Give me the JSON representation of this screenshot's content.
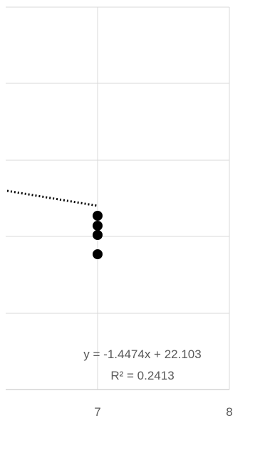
{
  "chart_data": {
    "type": "scatter",
    "xlim": [
      6,
      8
    ],
    "ylim": [
      0,
      25
    ],
    "grid": true,
    "x_tick_labels": [
      "7",
      "8"
    ],
    "series": [
      {
        "points": [
          {
            "x": 7,
            "y": 11.5
          },
          {
            "x": 7,
            "y": 10.2
          },
          {
            "x": 7,
            "y": 9.0
          },
          {
            "x": 7,
            "y": 6.3
          }
        ],
        "color": "#000000"
      }
    ],
    "trendline": {
      "slope": -1.4474,
      "intercept": 22.103,
      "style": "dotted",
      "x_from": 6,
      "x_to": 7,
      "equation_label": "y = -1.4474x + 22.103",
      "r2_label": "R² = 0.2413"
    }
  }
}
